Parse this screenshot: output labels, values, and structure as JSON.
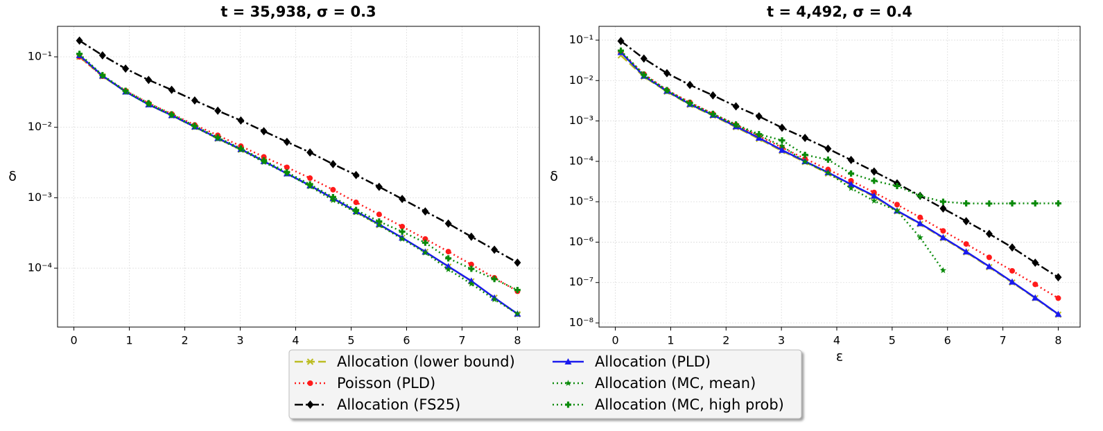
{
  "chart_data": [
    {
      "type": "line",
      "title": "t = 35,938, σ = 0.3",
      "y_label": "δ",
      "log_y": true,
      "grid": true,
      "legend": "lower center",
      "x": [
        0.1,
        0.516,
        0.932,
        1.347,
        1.763,
        2.179,
        2.595,
        3.011,
        3.426,
        3.842,
        4.258,
        4.674,
        5.089,
        5.505,
        5.921,
        6.337,
        6.753,
        7.168,
        7.584,
        8.0
      ],
      "xlim": [
        -0.295,
        8.395
      ],
      "xticks": [
        0,
        1,
        2,
        3,
        4,
        5,
        6,
        7,
        8
      ],
      "ylim": [
        1.46e-05,
        0.271
      ],
      "yticks": [
        {
          "value": 0.0001,
          "label": "10⁻⁴"
        },
        {
          "value": 0.001,
          "label": "10⁻³"
        },
        {
          "value": 0.01,
          "label": "10⁻²"
        },
        {
          "value": 0.1,
          "label": "10⁻¹"
        }
      ],
      "series": [
        {
          "name": "Allocation (lower bound)",
          "color": "#bcbd22",
          "linestyle": "dashed",
          "marker": "x",
          "values": [
            0.1,
            0.053,
            0.032,
            0.021,
            0.0147,
            0.0101,
            0.0069,
            0.0048,
            0.0033,
            0.0022,
            0.00148,
            0.00097,
            0.00063,
            0.00041,
            0.00027,
            0.00017,
            0.000105,
            6.5e-05,
            3.8e-05,
            2.22e-05
          ]
        },
        {
          "name": "Poisson (PLD)",
          "color": "#ff1a1a",
          "linestyle": "dotted",
          "marker": "circle",
          "values": [
            0.1,
            0.053,
            0.033,
            0.022,
            0.0155,
            0.0108,
            0.0077,
            0.0054,
            0.0038,
            0.0027,
            0.0019,
            0.0013,
            0.00086,
            0.00058,
            0.00039,
            0.00026,
            0.000172,
            0.000113,
            7.3e-05,
            4.7e-05
          ]
        },
        {
          "name": "Allocation (FS25)",
          "color": "#000000",
          "linestyle": "dashdot",
          "marker": "diamond",
          "values": [
            0.17,
            0.105,
            0.068,
            0.047,
            0.034,
            0.024,
            0.0172,
            0.0125,
            0.0088,
            0.0062,
            0.0044,
            0.003,
            0.0021,
            0.00143,
            0.00096,
            0.00064,
            0.00043,
            0.00028,
            0.000183,
            0.00012
          ]
        },
        {
          "name": "Allocation (PLD)",
          "color": "#1a1aee",
          "linestyle": "solid",
          "marker": "triangle",
          "values": [
            0.105,
            0.054,
            0.032,
            0.021,
            0.0148,
            0.0102,
            0.007,
            0.0049,
            0.0033,
            0.0022,
            0.00149,
            0.00098,
            0.00064,
            0.00042,
            0.00027,
            0.000171,
            0.000106,
            6.6e-05,
            3.8e-05,
            2.25e-05
          ]
        },
        {
          "name": "Allocation (MC, mean)",
          "color": "#0a8a0a",
          "linestyle": "dotted",
          "marker": "star",
          "values": [
            0.11,
            0.054,
            0.032,
            0.021,
            0.0148,
            0.0101,
            0.0069,
            0.0048,
            0.0032,
            0.0022,
            0.00145,
            0.00092,
            0.00062,
            0.00041,
            0.00026,
            0.000166,
            9.6e-05,
            6e-05,
            3.6e-05,
            2.25e-05
          ]
        },
        {
          "name": "Allocation (MC, high prob)",
          "color": "#0a8a0a",
          "linestyle": "dotted",
          "marker": "plus",
          "values": [
            0.11,
            0.055,
            0.033,
            0.022,
            0.0152,
            0.0105,
            0.0072,
            0.005,
            0.0034,
            0.0023,
            0.00155,
            0.00102,
            0.00067,
            0.00046,
            0.00033,
            0.00023,
            0.000138,
            9.8e-05,
            7e-05,
            4.9e-05
          ]
        }
      ]
    },
    {
      "type": "line",
      "title": "t = 4,492, σ = 0.4",
      "x_label": "ε",
      "y_label": "δ",
      "log_y": true,
      "grid": true,
      "x": [
        0.1,
        0.516,
        0.932,
        1.347,
        1.763,
        2.179,
        2.595,
        3.011,
        3.426,
        3.842,
        4.258,
        4.674,
        5.089,
        5.505,
        5.921,
        6.337,
        6.753,
        7.168,
        7.584,
        8.0
      ],
      "xlim": [
        -0.295,
        8.395
      ],
      "xticks": [
        0,
        1,
        2,
        3,
        4,
        5,
        6,
        7,
        8
      ],
      "ylim": [
        7.9e-09,
        0.22
      ],
      "yticks": [
        {
          "value": 1e-08,
          "label": "10⁻⁸"
        },
        {
          "value": 1e-07,
          "label": "10⁻⁷"
        },
        {
          "value": 1e-06,
          "label": "10⁻⁶"
        },
        {
          "value": 1e-05,
          "label": "10⁻⁵"
        },
        {
          "value": 0.0001,
          "label": "10⁻⁴"
        },
        {
          "value": 0.001,
          "label": "10⁻³"
        },
        {
          "value": 0.01,
          "label": "10⁻²"
        },
        {
          "value": 0.1,
          "label": "10⁻¹"
        }
      ],
      "series": [
        {
          "color": "#bcbd22",
          "linestyle": "dashed",
          "marker": "x",
          "values": [
            0.042,
            0.0125,
            0.0053,
            0.0025,
            0.00135,
            0.0007,
            0.00036,
            0.00018,
            9.6e-05,
            5e-05,
            2.6e-05,
            1.33e-05,
            5.8e-06,
            2.8e-06,
            1.25e-06,
            5.6e-07,
            2.4e-07,
            1e-07,
            4.1e-08,
            1.6e-08
          ]
        },
        {
          "color": "#ff1a1a",
          "linestyle": "dotted",
          "marker": "circle",
          "values": [
            0.05,
            0.0145,
            0.0058,
            0.0029,
            0.0015,
            0.0008,
            0.00042,
            0.00022,
            0.000116,
            6.3e-05,
            3.3e-05,
            1.7e-05,
            8.5e-06,
            4.1e-06,
            1.9e-06,
            9e-07,
            4.2e-07,
            1.95e-07,
            9e-08,
            4.1e-08
          ]
        },
        {
          "color": "#000000",
          "linestyle": "dashdot",
          "marker": "diamond",
          "values": [
            0.095,
            0.035,
            0.0152,
            0.0078,
            0.0043,
            0.0023,
            0.0013,
            0.00068,
            0.00038,
            0.000205,
            0.000108,
            5.6e-05,
            2.85e-05,
            1.4e-05,
            6.8e-06,
            3.3e-06,
            1.6e-06,
            7.4e-07,
            3.1e-07,
            1.35e-07
          ]
        },
        {
          "color": "#1a1aee",
          "linestyle": "solid",
          "marker": "triangle",
          "values": [
            0.05,
            0.013,
            0.0055,
            0.0026,
            0.0014,
            0.00073,
            0.00038,
            0.00019,
            0.0001,
            5.3e-05,
            2.7e-05,
            1.4e-05,
            6e-06,
            2.9e-06,
            1.3e-06,
            5.8e-07,
            2.5e-07,
            1.04e-07,
            4.2e-08,
            1.65e-08
          ]
        },
        {
          "color": "#0a8a0a",
          "linestyle": "dotted",
          "marker": "star",
          "values": [
            0.055,
            0.013,
            0.0055,
            0.0026,
            0.0014,
            0.00077,
            0.00044,
            0.00024,
            9.8e-05,
            5.2e-05,
            2.15e-05,
            1.05e-05,
            6e-06,
            1.3e-06,
            2e-07,
            null,
            null,
            null,
            null,
            null
          ]
        },
        {
          "color": "#0a8a0a",
          "linestyle": "dotted",
          "marker": "plus",
          "values": [
            0.055,
            0.014,
            0.0058,
            0.0028,
            0.0015,
            0.00082,
            0.00047,
            0.00033,
            0.000145,
            0.00011,
            5e-05,
            3.3e-05,
            2.45e-05,
            1.4e-05,
            1e-05,
            9.1e-06,
            9e-06,
            9.1e-06,
            9.1e-06,
            9.1e-06
          ]
        }
      ]
    }
  ]
}
